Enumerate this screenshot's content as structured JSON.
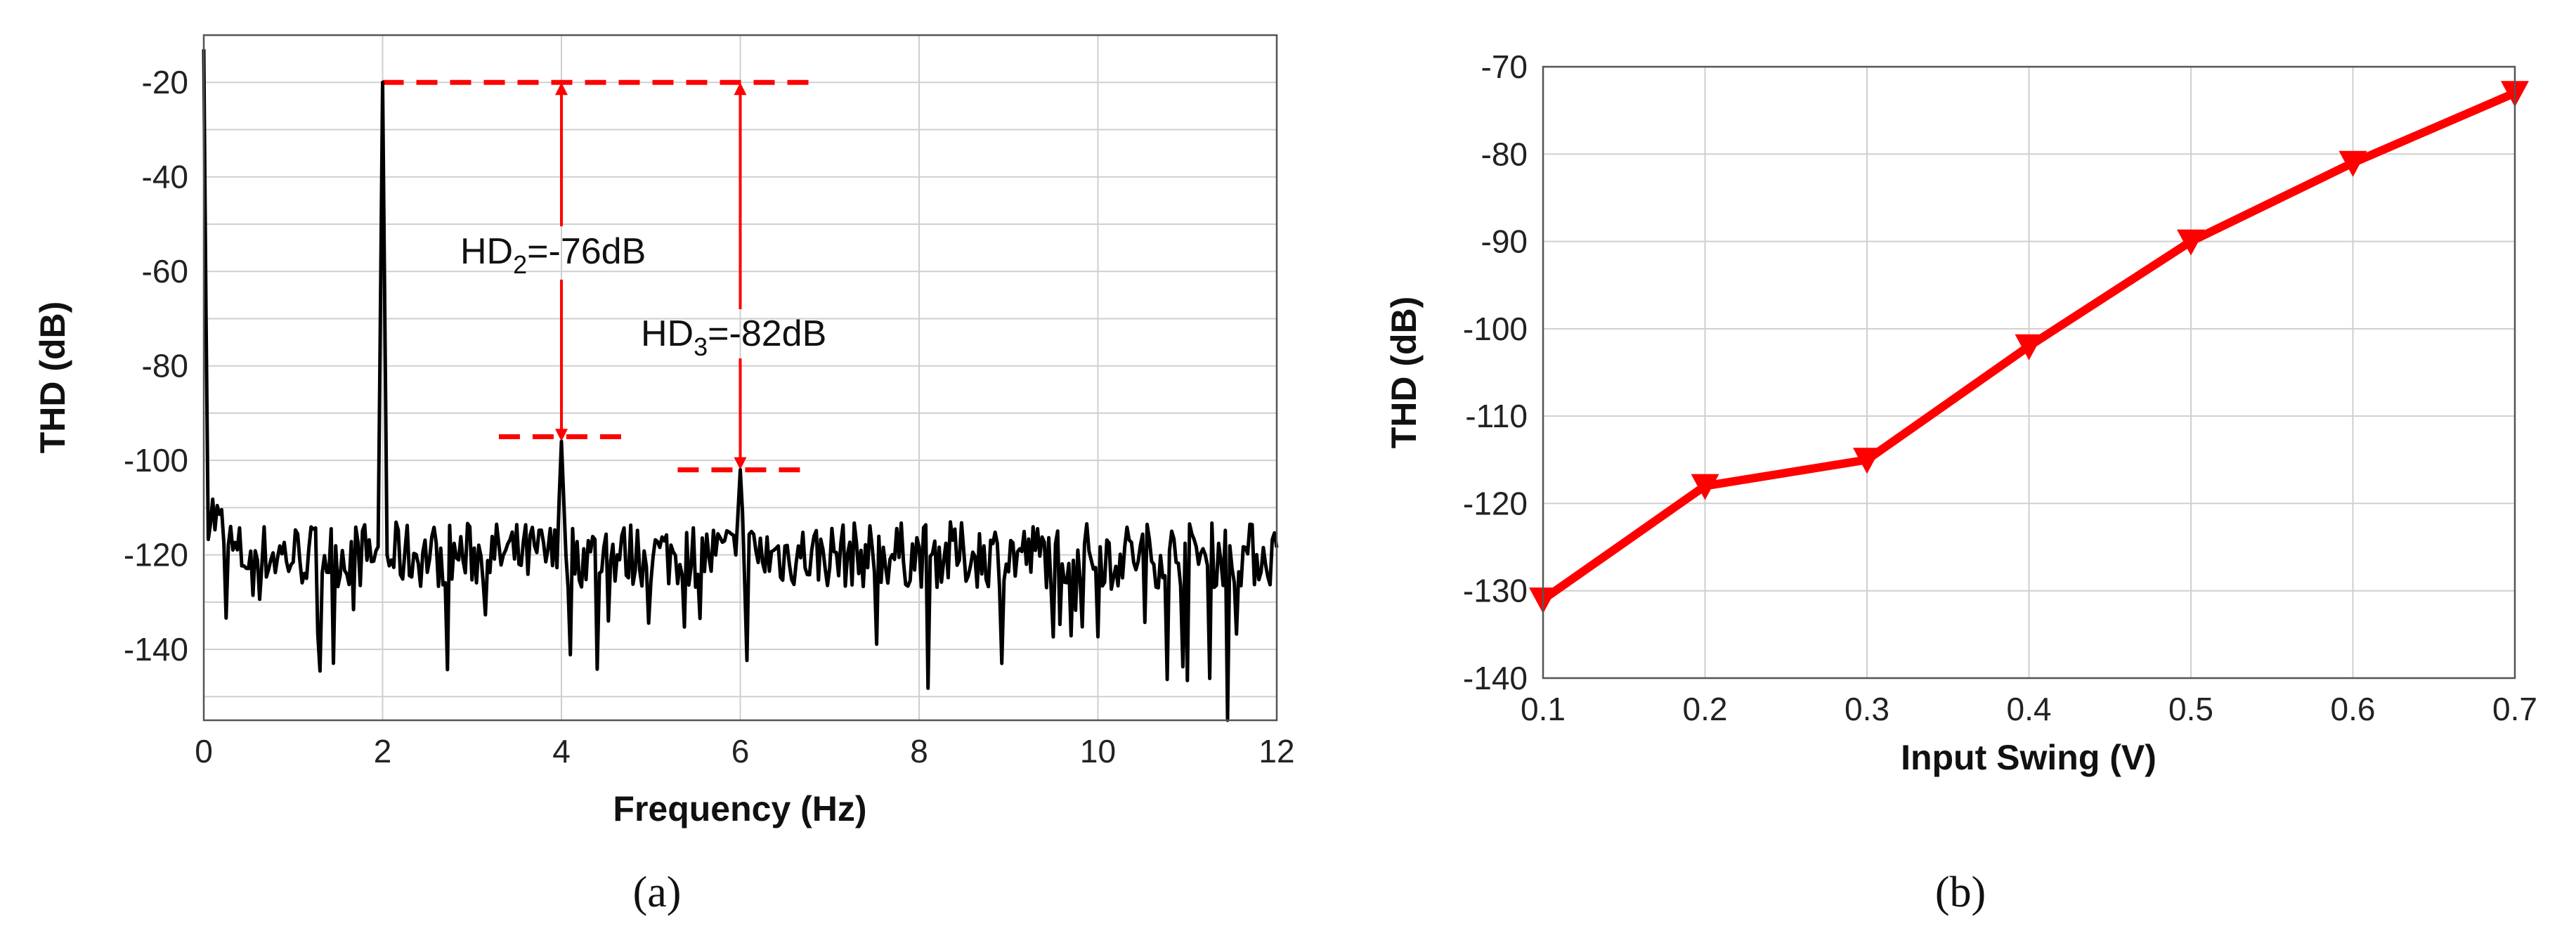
{
  "chart_data": [
    {
      "type": "line",
      "panel_label": "(a)",
      "xlabel": "Frequency (Hz)",
      "ylabel": "THD (dB)",
      "xlim": [
        0,
        12
      ],
      "ylim": [
        -155,
        -10
      ],
      "xticks": [
        "0",
        "2",
        "4",
        "6",
        "8",
        "10",
        "12"
      ],
      "yticks": [
        "-20",
        "-40",
        "-60",
        "-80",
        "-100",
        "-120",
        "-140"
      ],
      "grid": true,
      "line_color": "#000000",
      "series": [
        {
          "name": "",
          "description": "output spectrum",
          "noise_floor": -120,
          "peaks": [
            {
              "x": 0.0,
              "y": -13
            },
            {
              "x": 2.0,
              "y": -20
            },
            {
              "x": 4.0,
              "y": -96
            },
            {
              "x": 6.0,
              "y": -102
            }
          ]
        }
      ],
      "annotations": {
        "color": "#ff0000",
        "hd2": {
          "pre": "HD",
          "sub": "2",
          "post": "=-76dB",
          "x": 4.0,
          "from": -20,
          "to": -96
        },
        "hd3": {
          "pre": "HD",
          "sub": "3",
          "post": "=-82dB",
          "x": 6.0,
          "from": -20,
          "to": -102
        },
        "ref_line": {
          "x": [
            2.0,
            6.9
          ],
          "y": -20
        },
        "hd2_level": {
          "x": [
            3.3,
            4.8
          ],
          "y": -95
        },
        "hd3_level": {
          "x": [
            5.3,
            6.8
          ],
          "y": -102
        }
      }
    },
    {
      "type": "line",
      "panel_label": "(b)",
      "xlabel": "Input Swing (V)",
      "ylabel": "THD (dB)",
      "xlim": [
        0.1,
        0.7
      ],
      "ylim": [
        -140,
        -70
      ],
      "xticks": [
        "0.1",
        "0.2",
        "0.3",
        "0.4",
        "0.5",
        "0.6",
        "0.7"
      ],
      "yticks": [
        "-70",
        "-80",
        "-90",
        "-100",
        "-110",
        "-120",
        "-130",
        "-140"
      ],
      "grid": true,
      "marker": "triangle-down",
      "line_color": "#ff0000",
      "series": [
        {
          "name": "",
          "x": [
            0.1,
            0.2,
            0.3,
            0.4,
            0.5,
            0.6,
            0.7
          ],
          "y": [
            -131,
            -118,
            -115,
            -102,
            -90,
            -81,
            -73
          ]
        }
      ]
    }
  ]
}
